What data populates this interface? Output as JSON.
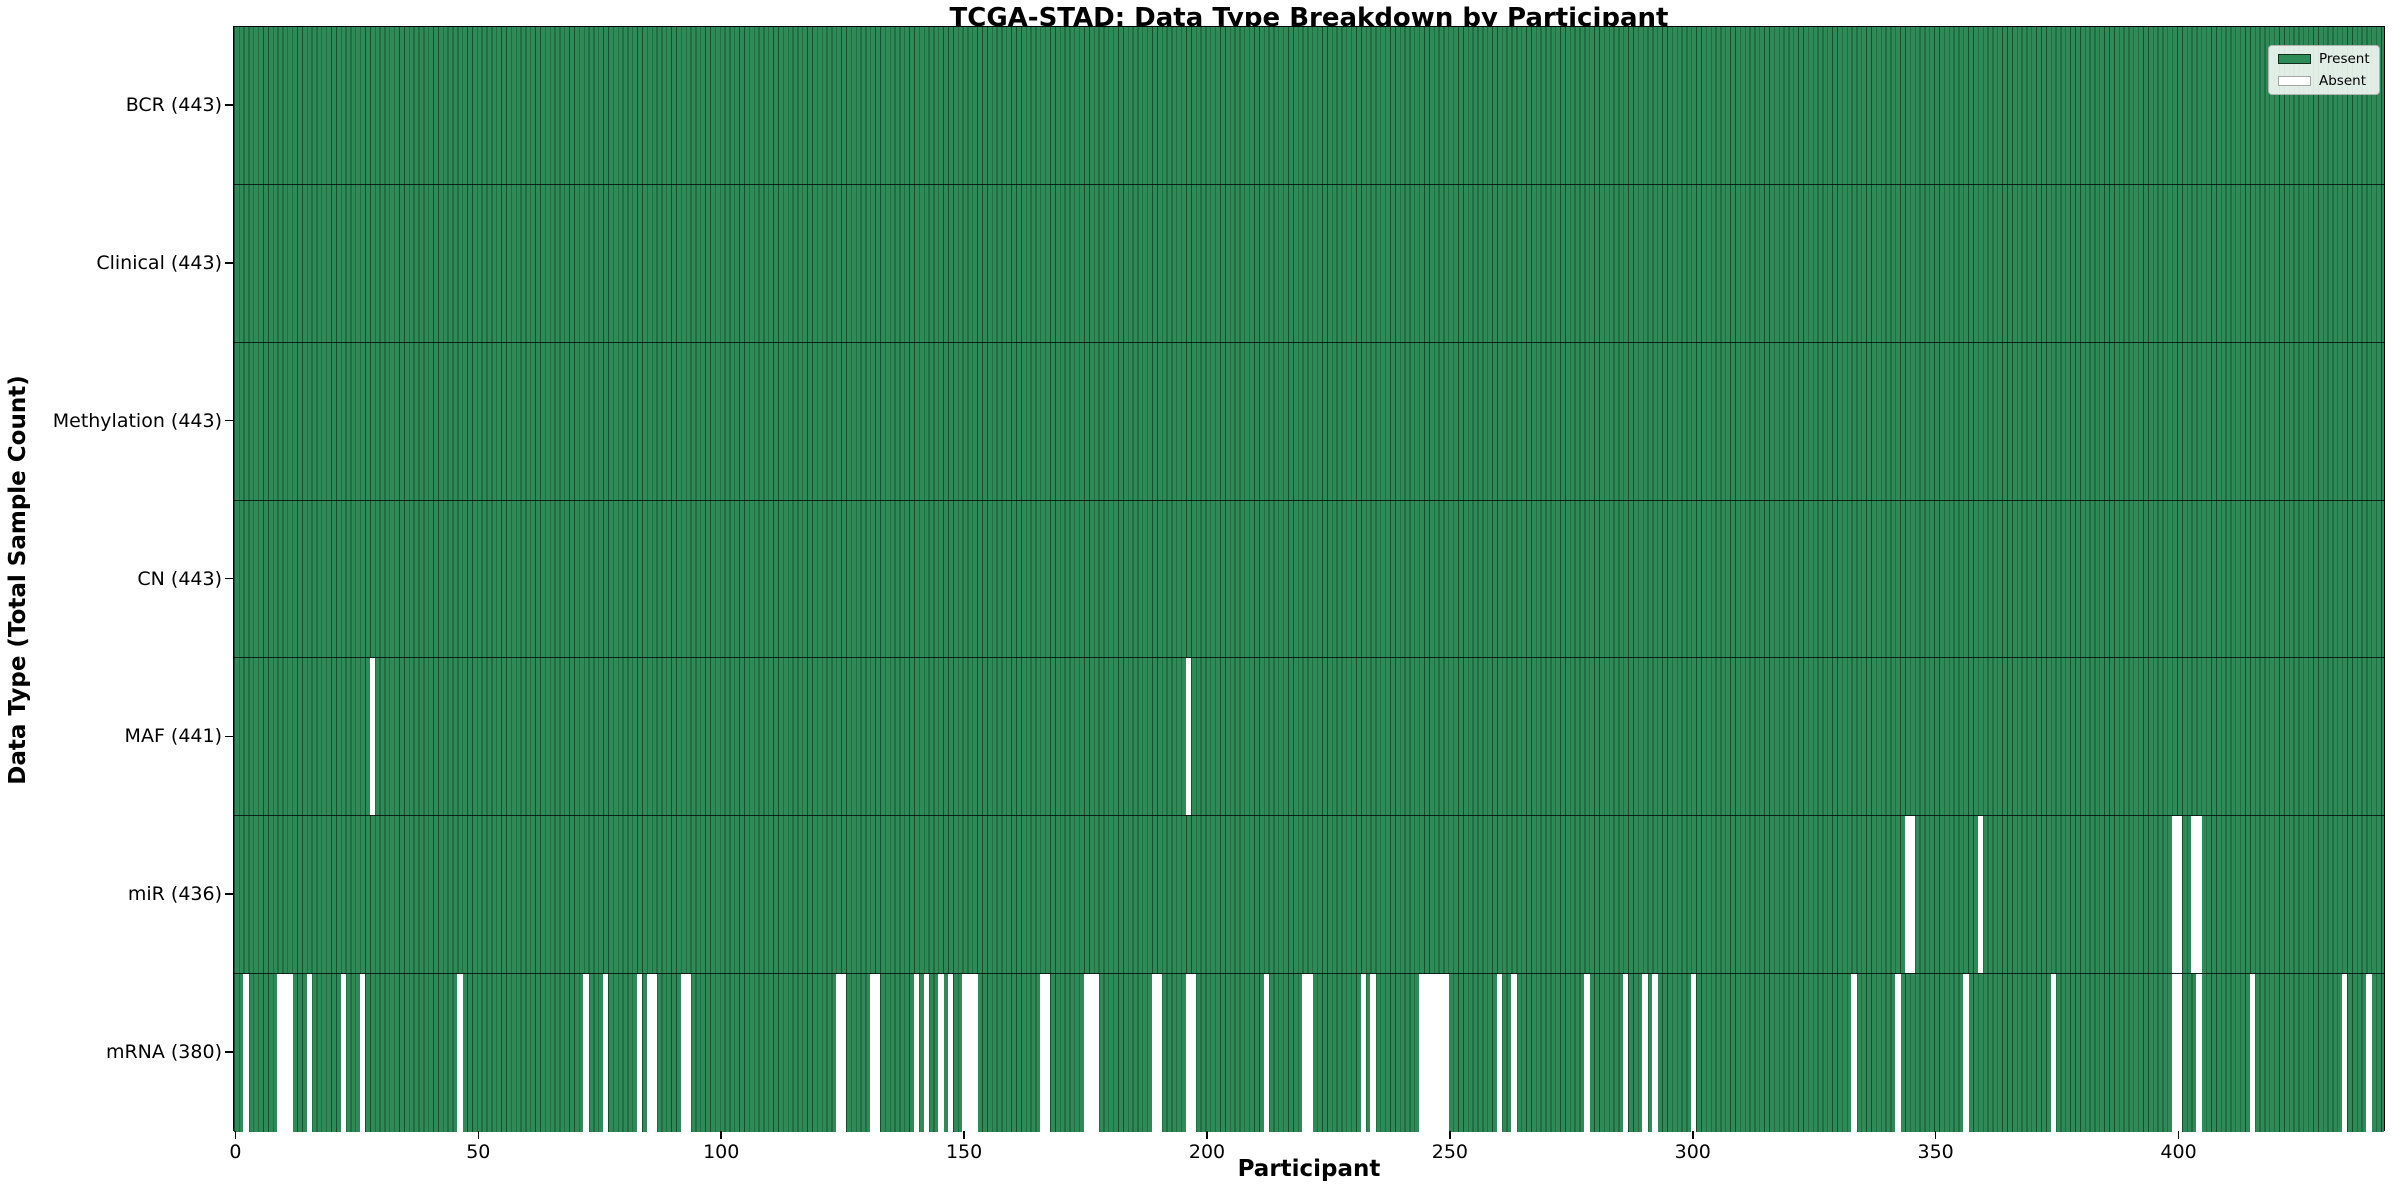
{
  "title": "TCGA-STAD: Data Type Breakdown by Participant",
  "x_axis_label": "Participant",
  "y_axis_label": "Data Type (Total Sample Count)",
  "legend": {
    "present_label": "Present",
    "absent_label": "Absent"
  },
  "colors": {
    "present": "#2e8b57",
    "absent": "#ffffff",
    "bar_edge": "rgba(8,38,22,0.6)",
    "axis": "#000000"
  },
  "chart_data": {
    "type": "heatmap",
    "title": "TCGA-STAD: Data Type Breakdown by Participant",
    "xlabel": "Participant",
    "ylabel": "Data Type (Total Sample Count)",
    "legend_entries": [
      "Present",
      "Absent"
    ],
    "legend_position": "upper right",
    "grid": false,
    "n_participants": 443,
    "xlim": [
      -0.5,
      442.5
    ],
    "x_ticks": [
      0,
      50,
      100,
      150,
      200,
      250,
      300,
      350,
      400
    ],
    "rows": [
      {
        "label": "BCR (443)",
        "data_type": "BCR",
        "total_samples": 443,
        "absent_participants": []
      },
      {
        "label": "Clinical (443)",
        "data_type": "Clinical",
        "total_samples": 443,
        "absent_participants": []
      },
      {
        "label": "Methylation (443)",
        "data_type": "Methylation",
        "total_samples": 443,
        "absent_participants": []
      },
      {
        "label": "CN (443)",
        "data_type": "CN",
        "total_samples": 443,
        "absent_participants": []
      },
      {
        "label": "MAF (441)",
        "data_type": "MAF",
        "total_samples": 441,
        "absent_participants": [
          28,
          196
        ]
      },
      {
        "label": "miR (436)",
        "data_type": "miR",
        "total_samples": 436,
        "absent_participants": [
          344,
          345,
          359,
          399,
          400,
          403,
          404
        ]
      },
      {
        "label": "mRNA (380)",
        "data_type": "mRNA",
        "total_samples": 380,
        "absent_participants": [
          2,
          9,
          10,
          11,
          15,
          22,
          26,
          46,
          72,
          76,
          83,
          85,
          86,
          92,
          93,
          124,
          125,
          131,
          132,
          140,
          142,
          145,
          147,
          150,
          151,
          152,
          166,
          167,
          175,
          176,
          177,
          189,
          190,
          196,
          197,
          212,
          220,
          221,
          232,
          234,
          244,
          245,
          246,
          247,
          248,
          249,
          260,
          263,
          278,
          286,
          290,
          292,
          300,
          333,
          342,
          356,
          374,
          399,
          400,
          404,
          415,
          434,
          439
        ]
      }
    ]
  }
}
